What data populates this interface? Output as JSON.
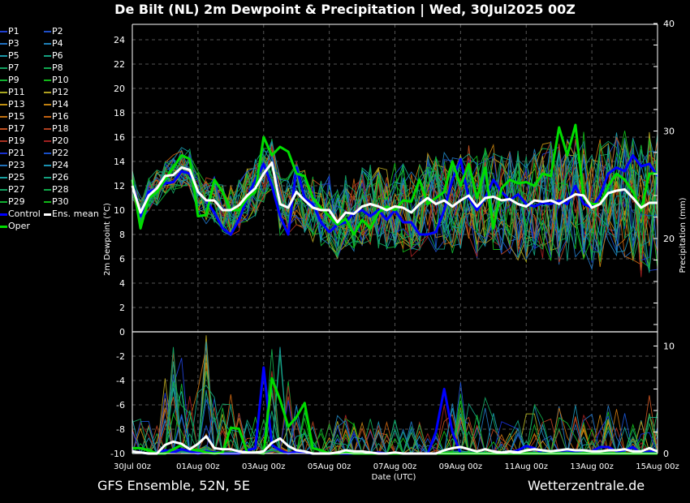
{
  "title": "De Bilt  (NL)  2m Dewpoint & Precipitation | Wed, 30Jul2025 00Z",
  "footer": {
    "left": "GFS Ensemble, 52N, 5E",
    "right": "Wetterzentrale.de"
  },
  "legend": [
    {
      "label": "P1",
      "color": "#1f3fd0"
    },
    {
      "label": "P2",
      "color": "#1f4fc8"
    },
    {
      "label": "P3",
      "color": "#2070c0"
    },
    {
      "label": "P4",
      "color": "#1f80b8"
    },
    {
      "label": "P5",
      "color": "#1a98a8"
    },
    {
      "label": "P6",
      "color": "#14a080"
    },
    {
      "label": "P7",
      "color": "#12a060"
    },
    {
      "label": "P8",
      "color": "#10a850"
    },
    {
      "label": "P9",
      "color": "#10b030"
    },
    {
      "label": "P10",
      "color": "#12b818"
    },
    {
      "label": "P11",
      "color": "#a8a820"
    },
    {
      "label": "P12",
      "color": "#b0a020"
    },
    {
      "label": "P13",
      "color": "#c09010"
    },
    {
      "label": "P14",
      "color": "#c08010"
    },
    {
      "label": "P15",
      "color": "#c07010"
    },
    {
      "label": "P16",
      "color": "#c06010"
    },
    {
      "label": "P17",
      "color": "#c05020"
    },
    {
      "label": "P18",
      "color": "#b04020"
    },
    {
      "label": "P19",
      "color": "#a83020"
    },
    {
      "label": "P20",
      "color": "#a02020"
    },
    {
      "label": "P21",
      "color": "#1830d0"
    },
    {
      "label": "P22",
      "color": "#1850c8"
    },
    {
      "label": "P23",
      "color": "#2070b8"
    },
    {
      "label": "P24",
      "color": "#1a90b0"
    },
    {
      "label": "P25",
      "color": "#18a0a0"
    },
    {
      "label": "P26",
      "color": "#14a080"
    },
    {
      "label": "P27",
      "color": "#12a060"
    },
    {
      "label": "P28",
      "color": "#10a848"
    },
    {
      "label": "P29",
      "color": "#10b030"
    },
    {
      "label": "P30",
      "color": "#10b818"
    },
    {
      "label": "Control",
      "color": "#0000ff"
    },
    {
      "label": "Ens. mean",
      "color": "#ffffff"
    },
    {
      "label": "Oper",
      "color": "#00dd00"
    }
  ],
  "chart_data": {
    "type": "line",
    "title": "De Bilt  (NL)  2m Dewpoint & Precipitation | Wed, 30Jul2025 00Z",
    "xlabel": "Date (UTC)",
    "ylabel": "2m Dewpoint (°C)",
    "y2label": "Precipitation (mm)",
    "ylim": [
      -10,
      25
    ],
    "y2lim": [
      0,
      40
    ],
    "yticks": [
      "24",
      "22",
      "20",
      "18",
      "16",
      "14",
      "12",
      "10",
      "8",
      "6",
      "4",
      "2",
      "0",
      "-2",
      "-4",
      "-6",
      "-8",
      "-10"
    ],
    "y2ticks": [
      "40",
      "30",
      "20",
      "10",
      "0"
    ],
    "xticks": [
      "30Jul 00z",
      "01Aug 00z",
      "03Aug 00z",
      "05Aug 00z",
      "07Aug 00z",
      "09Aug 00z",
      "11Aug 00z",
      "13Aug 00z",
      "15Aug 00z"
    ],
    "x_days": [
      0,
      0.25,
      0.5,
      0.75,
      1,
      1.25,
      1.5,
      1.75,
      2,
      2.25,
      2.5,
      2.75,
      3,
      3.25,
      3.5,
      3.75,
      4,
      4.25,
      4.5,
      4.75,
      5,
      5.25,
      5.5,
      5.75,
      6,
      6.25,
      6.5,
      6.75,
      7,
      7.25,
      7.5,
      7.75,
      8,
      8.25,
      8.5,
      8.75,
      9,
      9.25,
      9.5,
      9.75,
      10,
      10.25,
      10.5,
      10.75,
      11,
      11.25,
      11.5,
      11.75,
      12,
      12.25,
      12.5,
      12.75,
      13,
      13.25,
      13.5,
      13.75,
      14,
      14.25,
      14.5,
      14.75,
      15,
      15.25,
      15.5,
      15.75,
      16
    ],
    "grid": true,
    "dewpoint_series": [
      {
        "name": "Control",
        "values": [
          12.5,
          9.5,
          11.5,
          11.8,
          12.2,
          12.3,
          13.2,
          13.0,
          11.5,
          10.8,
          9.8,
          8.5,
          8.0,
          9.2,
          11.0,
          12.5,
          13.8,
          12.0,
          9.5,
          8.0,
          13.5,
          11.0,
          10.5,
          9.0,
          8.2,
          8.8,
          9.0,
          9.8,
          10.0,
          9.5,
          10.0,
          9.2,
          10.0,
          9.0,
          9.0,
          8.0,
          8.0,
          8.2,
          10.0,
          12.5,
          14.2,
          11.0,
          10.0,
          11.0,
          12.5,
          11.5,
          10.8,
          11.3,
          10.5,
          10.3,
          10.6,
          10.5,
          10.8,
          10.5,
          12.0,
          10.5,
          10.2,
          11.2,
          13.0,
          13.5,
          13.2,
          14.5,
          13.6,
          13.8,
          12.8
        ]
      },
      {
        "name": "Ens. mean",
        "values": [
          12.0,
          9.8,
          11.2,
          11.8,
          12.8,
          12.9,
          13.5,
          13.3,
          11.5,
          10.8,
          10.8,
          10.0,
          10.0,
          10.4,
          11.2,
          11.8,
          13.0,
          13.9,
          10.5,
          10.2,
          11.5,
          10.8,
          10.2,
          10.0,
          10.0,
          9.0,
          9.8,
          9.7,
          10.3,
          10.5,
          10.3,
          10.0,
          10.3,
          10.2,
          9.8,
          10.5,
          11.0,
          10.5,
          10.8,
          10.3,
          10.8,
          11.2,
          10.3,
          11.0,
          11.1,
          10.8,
          10.9,
          10.5,
          10.3,
          10.8,
          10.7,
          10.8,
          10.5,
          10.9,
          11.3,
          11.2,
          10.2,
          10.5,
          11.4,
          11.6,
          11.7,
          11.0,
          10.2,
          10.6,
          10.6
        ]
      },
      {
        "name": "Oper",
        "values": [
          12.5,
          8.5,
          11.0,
          11.5,
          12.5,
          13.5,
          14.5,
          14.2,
          9.5,
          9.6,
          12.5,
          11.5,
          10.0,
          10.0,
          11.0,
          11.5,
          16.0,
          14.5,
          15.2,
          14.8,
          13.0,
          12.8,
          11.0,
          10.2,
          9.5,
          8.8,
          9.3,
          8.0,
          9.2,
          8.5,
          9.8,
          10.3,
          10.0,
          10.8,
          10.7,
          12.5,
          10.5,
          11.0,
          11.5,
          14.0,
          12.0,
          13.8,
          11.0,
          13.5,
          8.5,
          11.8,
          12.5,
          12.2,
          12.3,
          12.0,
          13.0,
          12.8,
          16.8,
          14.5,
          17.0,
          11.0,
          10.5,
          10.5,
          12.0,
          13.0,
          12.5,
          11.5,
          10.0,
          13.0,
          13.0
        ]
      }
    ],
    "precipitation_series": [
      {
        "name": "Control",
        "values": [
          0.2,
          0.1,
          0,
          0,
          0.3,
          0.1,
          0.4,
          0.2,
          0,
          0.2,
          0.1,
          0,
          0,
          0,
          0.3,
          0.5,
          8,
          0.8,
          0.3,
          0,
          0.2,
          0.1,
          0,
          0,
          0,
          0,
          0,
          0,
          0,
          0,
          0.1,
          0,
          0,
          0,
          0,
          0,
          0,
          2,
          6,
          2,
          0,
          0,
          0,
          0,
          0,
          0,
          0.1,
          0.3,
          0.7,
          0.5,
          0,
          0.2,
          0.3,
          0.3,
          0.2,
          0.3,
          0.2,
          0.6,
          0.6,
          0.2,
          0.3,
          0.6,
          0,
          0.2,
          0.1
        ]
      },
      {
        "name": "Ens. mean",
        "values": [
          0.2,
          0.1,
          0,
          0,
          0.8,
          1.1,
          0.9,
          0.4,
          0.9,
          1.6,
          0.5,
          0.4,
          0.4,
          0.2,
          0.1,
          0.1,
          0.2,
          1.0,
          1.4,
          0.7,
          0.3,
          0.2,
          0,
          0,
          0,
          0.1,
          0.3,
          0.2,
          0.2,
          0.1,
          0,
          0,
          0.1,
          0,
          0,
          0,
          0,
          0,
          0.3,
          0.5,
          0.6,
          0.4,
          0.2,
          0.4,
          0.2,
          0.1,
          0.2,
          0.1,
          0.3,
          0.4,
          0.3,
          0.2,
          0.3,
          0.4,
          0.3,
          0.3,
          0.2,
          0.2,
          0.3,
          0.3,
          0.4,
          0.2,
          0.2,
          0.5,
          0.2
        ]
      },
      {
        "name": "Oper",
        "values": [
          0.5,
          0.5,
          0.3,
          0,
          0,
          0.4,
          0.8,
          0.4,
          0.3,
          0.1,
          0,
          0.1,
          2.4,
          2.3,
          0.1,
          0.1,
          0,
          7.0,
          5.0,
          2.5,
          3.4,
          4.7,
          0.5,
          0.3,
          0,
          0,
          0.1,
          0,
          0,
          0,
          0,
          0,
          0,
          0,
          0,
          0,
          0,
          0,
          0,
          0,
          0,
          0,
          0,
          0,
          0,
          0,
          0,
          0,
          0,
          0,
          0,
          0,
          0,
          0,
          0,
          0,
          0,
          0,
          0,
          0,
          0,
          0,
          0,
          0,
          0
        ]
      }
    ]
  }
}
